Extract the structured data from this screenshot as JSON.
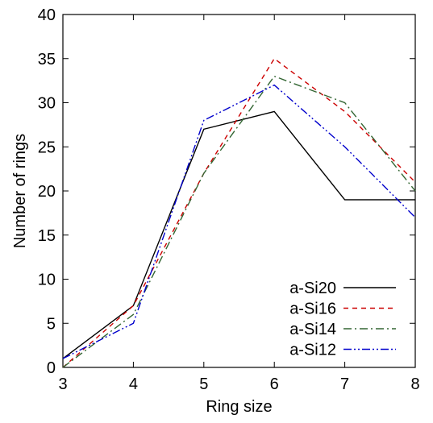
{
  "chart_data": {
    "type": "line",
    "title": "",
    "xlabel": "Ring size",
    "ylabel": "Number of rings",
    "xlim": [
      3,
      8
    ],
    "ylim": [
      0,
      40
    ],
    "xticks": [
      "3",
      "4",
      "5",
      "6",
      "7",
      "8"
    ],
    "yticks": [
      "0",
      "5",
      "10",
      "15",
      "20",
      "25",
      "30",
      "35",
      "40"
    ],
    "grid": false,
    "legend_position": "bottom-right",
    "x": [
      3,
      4,
      5,
      6,
      7,
      8
    ],
    "series": [
      {
        "name": "a-Si20",
        "values": [
          1,
          7,
          27,
          29,
          19,
          19
        ],
        "color": "#000000",
        "dash": "solid"
      },
      {
        "name": "a-Si16",
        "values": [
          0,
          7,
          22,
          35,
          29,
          21
        ],
        "color": "#cc0000",
        "dash": "dashed"
      },
      {
        "name": "a-Si14",
        "values": [
          0,
          6,
          22,
          33,
          30,
          20
        ],
        "color": "#336633",
        "dash": "dash-dot"
      },
      {
        "name": "a-Si12",
        "values": [
          1,
          5,
          28,
          32,
          25,
          17
        ],
        "color": "#0000cc",
        "dash": "dash-dot-dot"
      }
    ]
  }
}
